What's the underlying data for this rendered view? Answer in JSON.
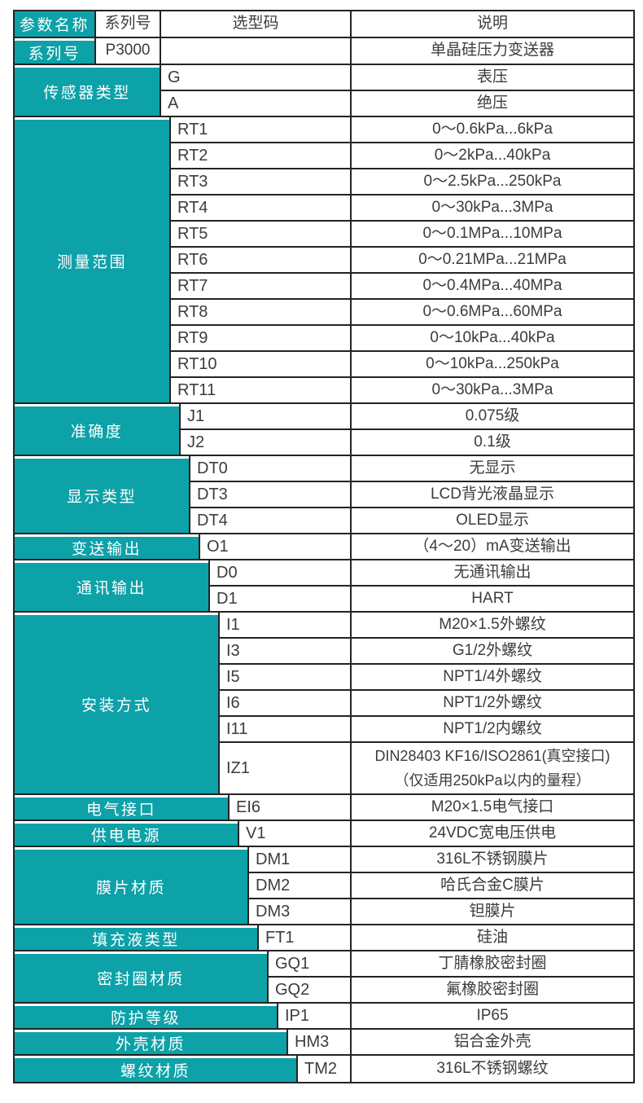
{
  "table": {
    "colors": {
      "teal": "#0DA1A8",
      "border": "#242424",
      "text": "#3C3C3C"
    },
    "header": {
      "param": "参数名称",
      "series": "系列号",
      "code": "选型码",
      "desc": "说明"
    },
    "series_row": {
      "label": "系列号",
      "value": "P3000",
      "code": "",
      "desc": "单晶硅压力变送器"
    },
    "groups": [
      {
        "name": "传感器类型",
        "rows": [
          {
            "code": "G",
            "desc": "表压"
          },
          {
            "code": "A",
            "desc": "绝压"
          }
        ]
      },
      {
        "name": "测量范围",
        "rows": [
          {
            "code": "RT1",
            "desc": "0～0.6kPa...6kPa"
          },
          {
            "code": "RT2",
            "desc": "0～2kPa...40kPa"
          },
          {
            "code": "RT3",
            "desc": "0～2.5kPa...250kPa"
          },
          {
            "code": "RT4",
            "desc": "0～30kPa...3MPa"
          },
          {
            "code": "RT5",
            "desc": "0～0.1MPa...10MPa"
          },
          {
            "code": "RT6",
            "desc": "0～0.21MPa...21MPa"
          },
          {
            "code": "RT7",
            "desc": "0～0.4MPa...40MPa"
          },
          {
            "code": "RT8",
            "desc": "0～0.6MPa...60MPa"
          },
          {
            "code": "RT9",
            "desc": "0～10kPa...40kPa"
          },
          {
            "code": "RT10",
            "desc": "0～10kPa...250kPa"
          },
          {
            "code": "RT11",
            "desc": "0～30kPa...3MPa"
          }
        ]
      },
      {
        "name": "准确度",
        "rows": [
          {
            "code": "J1",
            "desc": "0.075级"
          },
          {
            "code": "J2",
            "desc": "0.1级"
          }
        ]
      },
      {
        "name": "显示类型",
        "rows": [
          {
            "code": "DT0",
            "desc": "无显示"
          },
          {
            "code": "DT3",
            "desc": "LCD背光液晶显示"
          },
          {
            "code": "DT4",
            "desc": "OLED显示"
          }
        ]
      },
      {
        "name": "变送输出",
        "rows": [
          {
            "code": "O1",
            "desc": "（4～20）mA变送输出"
          }
        ]
      },
      {
        "name": "通讯输出",
        "rows": [
          {
            "code": "D0",
            "desc": "无通讯输出"
          },
          {
            "code": "D1",
            "desc": "HART"
          }
        ]
      },
      {
        "name": "安装方式",
        "rows": [
          {
            "code": "I1",
            "desc": "M20×1.5外螺纹"
          },
          {
            "code": "I3",
            "desc": "G1/2外螺纹"
          },
          {
            "code": "I5",
            "desc": "NPT1/4外螺纹"
          },
          {
            "code": "I6",
            "desc": "NPT1/2外螺纹"
          },
          {
            "code": "I11",
            "desc": "NPT1/2内螺纹"
          },
          {
            "code": "IZ1",
            "desc": "DIN28403 KF16/ISO2861(真空接口)\n（仅适用250kPa以内的量程）"
          }
        ]
      },
      {
        "name": "电气接口",
        "rows": [
          {
            "code": "EI6",
            "desc": "M20×1.5电气接口"
          }
        ]
      },
      {
        "name": "供电电源",
        "rows": [
          {
            "code": "V1",
            "desc": "24VDC宽电压供电"
          }
        ]
      },
      {
        "name": "膜片材质",
        "rows": [
          {
            "code": "DM1",
            "desc": "316L不锈钢膜片"
          },
          {
            "code": "DM2",
            "desc": "哈氏合金C膜片"
          },
          {
            "code": "DM3",
            "desc": "钽膜片"
          }
        ]
      },
      {
        "name": "填充液类型",
        "rows": [
          {
            "code": "FT1",
            "desc": "硅油"
          }
        ]
      },
      {
        "name": "密封圈材质",
        "rows": [
          {
            "code": "GQ1",
            "desc": "丁腈橡胶密封圈"
          },
          {
            "code": "GQ2",
            "desc": "氟橡胶密封圈"
          }
        ]
      },
      {
        "name": "防护等级",
        "rows": [
          {
            "code": "IP1",
            "desc": "IP65"
          }
        ]
      },
      {
        "name": "外壳材质",
        "rows": [
          {
            "code": "HM3",
            "desc": "铝合金外壳"
          }
        ]
      },
      {
        "name": "螺纹材质",
        "rows": [
          {
            "code": "TM2",
            "desc": "316L不锈钢螺纹"
          }
        ]
      }
    ]
  }
}
